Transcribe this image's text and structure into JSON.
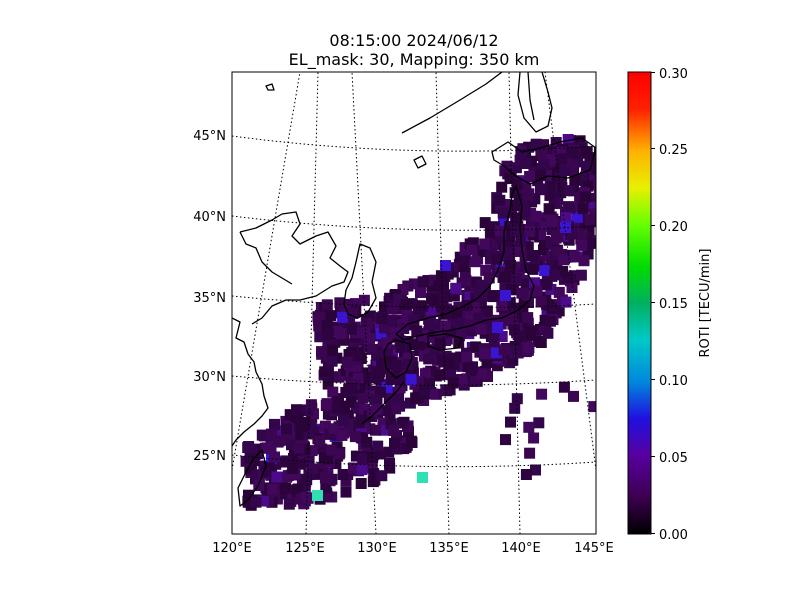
{
  "title": {
    "line1": "08:15:00 2024/06/12",
    "line2": "EL_mask: 30, Mapping: 350 km"
  },
  "map": {
    "lon_labels": [
      "120°E",
      "125°E",
      "130°E",
      "135°E",
      "140°E",
      "145°E"
    ],
    "lat_labels": [
      "25°N",
      "30°N",
      "35°N",
      "40°N",
      "45°N"
    ],
    "extent": {
      "lon": [
        120,
        145
      ],
      "lat": [
        20,
        49
      ]
    },
    "gridlines": "dotted",
    "coastlines": "black"
  },
  "colorbar": {
    "label": "ROTI [TECU/min]",
    "ticks": [
      "0.00",
      "0.05",
      "0.10",
      "0.15",
      "0.20",
      "0.25",
      "0.30"
    ],
    "range": [
      0,
      0.3
    ],
    "colormap": "nipy_spectral-like (black-purple-blue-cyan-green-yellow-red)"
  },
  "colors": {
    "dominant_cell": "#3a0650",
    "enhanced_cell": "#3a14d0",
    "peak_cell": "#2fe0b0"
  }
}
